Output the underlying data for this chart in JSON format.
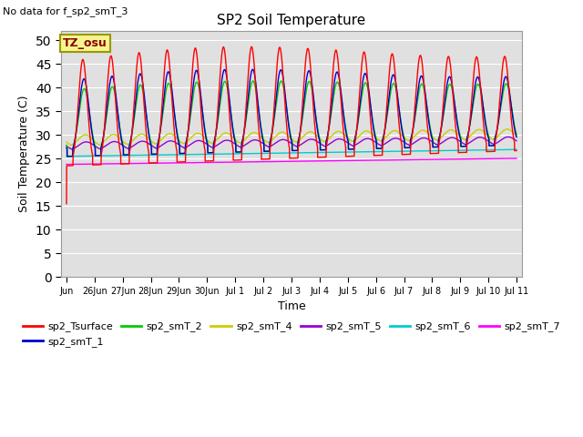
{
  "title": "SP2 Soil Temperature",
  "subtitle": "No data for f_sp2_smT_3",
  "ylabel": "Soil Temperature (C)",
  "xlabel": "Time",
  "ylim": [
    0,
    52
  ],
  "yticks": [
    0,
    5,
    10,
    15,
    20,
    25,
    30,
    35,
    40,
    45,
    50
  ],
  "bg_color": "#e0e0e0",
  "tz_label": "TZ_osu",
  "tz_bg": "#f5f590",
  "tz_border": "#999900",
  "legend": [
    {
      "label": "sp2_Tsurface",
      "color": "#ff0000"
    },
    {
      "label": "sp2_smT_1",
      "color": "#0000cc"
    },
    {
      "label": "sp2_smT_2",
      "color": "#00cc00"
    },
    {
      "label": "sp2_smT_4",
      "color": "#cccc00"
    },
    {
      "label": "sp2_smT_5",
      "color": "#9900cc"
    },
    {
      "label": "sp2_smT_6",
      "color": "#00cccc"
    },
    {
      "label": "sp2_smT_7",
      "color": "#ff00ff"
    }
  ],
  "xtick_labels": [
    "Jun",
    "26Jun",
    "27Jun",
    "28Jun",
    "29Jun",
    "30",
    "Jul 1",
    "Jul 2",
    "Jul 3",
    "Jul 4",
    "Jul 5",
    "Jul 6",
    "Jul 7",
    "Jul 8",
    "Jul 9",
    "Jul 10",
    "Jul 11"
  ]
}
